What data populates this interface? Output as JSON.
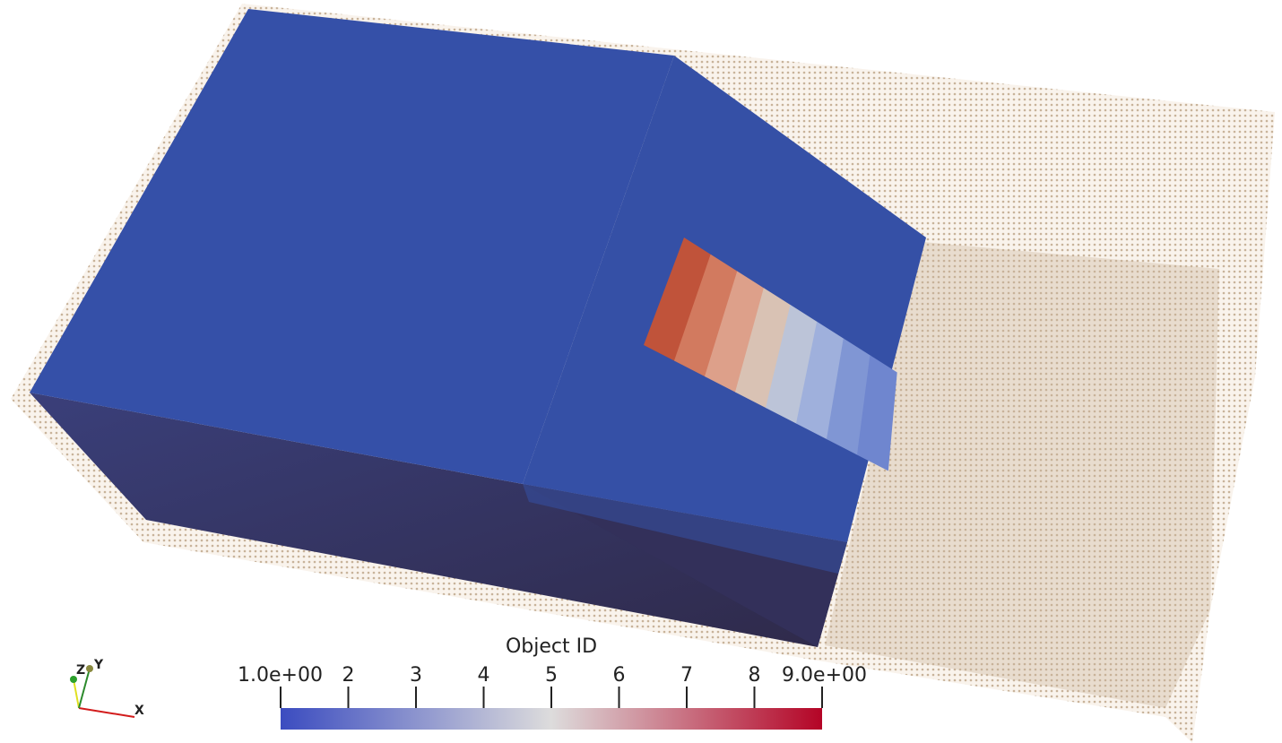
{
  "colorbar": {
    "title": "Object ID",
    "range": [
      1,
      9
    ],
    "ticks": [
      {
        "value": 1,
        "label": "1.0e+00"
      },
      2,
      3,
      4,
      5,
      6,
      7,
      8,
      {
        "value": 9,
        "label": "9.0e+00"
      }
    ],
    "colormap": [
      "#3b4cc0",
      "#dddcdc",
      "#b40426"
    ]
  },
  "axes_widget": {
    "labels": [
      "Z",
      "Y",
      "X"
    ]
  }
}
